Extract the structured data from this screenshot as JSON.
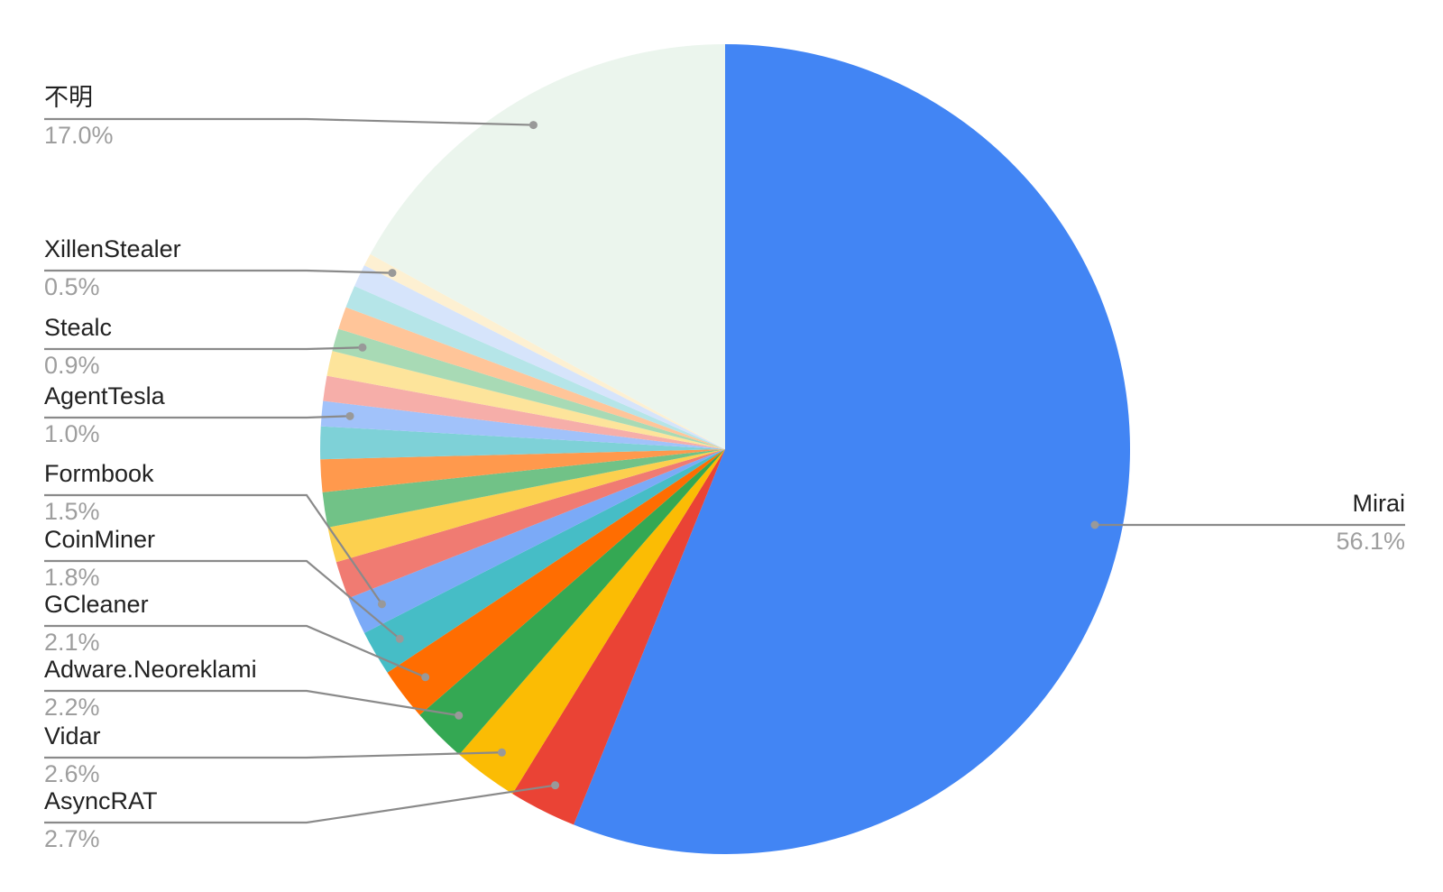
{
  "chart_data": {
    "type": "pie",
    "categories": [
      "Mirai",
      "AsyncRAT",
      "Vidar",
      "Adware.Neoreklami",
      "GCleaner",
      "CoinMiner",
      "Formbook",
      null,
      null,
      null,
      null,
      null,
      "AgentTesla",
      null,
      null,
      "Stealc",
      null,
      null,
      null,
      "XillenStealer",
      "不明"
    ],
    "values": [
      56.1,
      2.7,
      2.6,
      2.2,
      2.1,
      1.8,
      1.5,
      1.5,
      1.4,
      1.4,
      1.3,
      1.3,
      1.0,
      1.0,
      1.0,
      0.9,
      0.9,
      0.9,
      0.9,
      0.5,
      17.0
    ],
    "value_labels": [
      "56.1%",
      "2.7%",
      "2.6%",
      "2.2%",
      "2.1%",
      "1.8%",
      "1.5%",
      null,
      null,
      null,
      null,
      null,
      "1.0%",
      null,
      null,
      "0.9%",
      null,
      null,
      null,
      "0.5%",
      "17.0%"
    ],
    "colors": [
      "#4285f4",
      "#ea4335",
      "#fbbc04",
      "#34a853",
      "#ff6d01",
      "#46bdc6",
      "#7baaf7",
      "#f07b72",
      "#fcd04f",
      "#71c287",
      "#ff994d",
      "#7ed1d7",
      "#a1c2fa",
      "#f6aea9",
      "#fde49b",
      "#a8dab5",
      "#ffc599",
      "#b5e5e8",
      "#d6e4fb",
      "#fdf0d2",
      "#ebf5ed"
    ]
  }
}
